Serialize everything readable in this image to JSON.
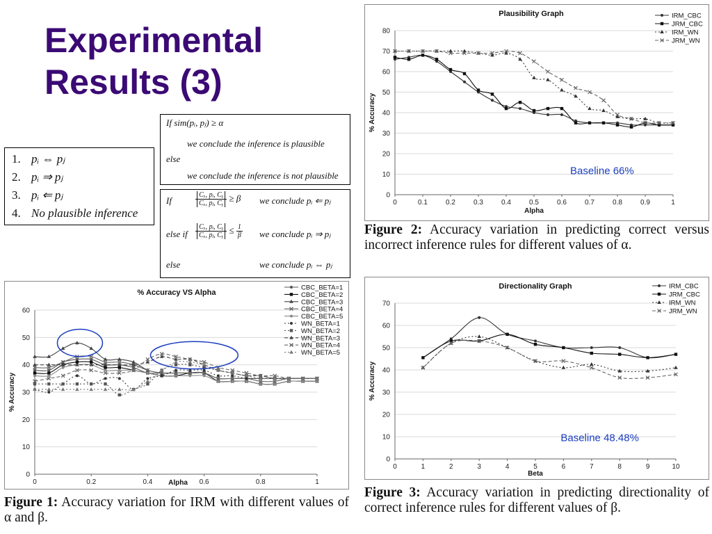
{
  "slide": {
    "title_line1": "Experimental",
    "title_line2": "Results (3)"
  },
  "rules_box": {
    "items": [
      {
        "num": "1.",
        "text": "pᵢ ⇔ pⱼ"
      },
      {
        "num": "2.",
        "text": "pᵢ ⇒ pⱼ"
      },
      {
        "num": "3.",
        "text": "pᵢ ⇐ pⱼ"
      },
      {
        "num": "4.",
        "text": "No plausible inference"
      }
    ]
  },
  "sim_box": {
    "line1": "If  sim(pᵢ, pⱼ) ≥ α",
    "line2": "we conclude the inference is plausible",
    "line3": "else",
    "line4": "we conclude the inference is not plausible"
  },
  "dir_box": {
    "if": "If",
    "frac1_num": "Cₓ, pᵢ, Cᵧ",
    "frac1_den": "Cₓ, pⱼ, Cᵧ",
    "cond1": "≥ β",
    "res1": "we conclude pᵢ ⇐ pⱼ",
    "elseif": "else if",
    "frac2_num": "Cₓ, pᵢ, Cᵧ",
    "frac2_den": "Cₓ, pⱼ, Cᵧ",
    "cond2_op": "≤",
    "cond2_num": "1",
    "cond2_den": "β",
    "res2": "we conclude pᵢ ⇒ pⱼ",
    "else": "else",
    "res3": "we conclude pᵢ ⇔ pⱼ"
  },
  "captions": {
    "fig1_label": "Figure 1:",
    "fig1_text": " Accuracy variation for IRM with different values of α and β.",
    "fig2_label": "Figure 2:",
    "fig2_text": " Accuracy variation in predicting correct versus incorrect inference rules for different values of α.",
    "fig3_label": "Figure 3:",
    "fig3_text": " Accuracy variation in predicting directionality of correct inference rules for different values of β."
  },
  "chart_data": [
    {
      "id": "fig2",
      "type": "line",
      "title": "Plausibility Graph",
      "xlabel": "Alpha",
      "ylabel": "% Accuracy",
      "xlim": [
        0,
        1
      ],
      "ylim": [
        0,
        80
      ],
      "xticks": [
        0,
        0.1,
        0.2,
        0.3,
        0.4,
        0.5,
        0.6,
        0.7,
        0.8,
        0.9,
        1
      ],
      "xtick_labels": [
        "0",
        "0.1",
        "0.2",
        "0.3",
        "0.4",
        "0.5",
        "0.6",
        "0.7",
        "0.8",
        "0.9",
        "1"
      ],
      "yticks": [
        0,
        10,
        20,
        30,
        40,
        50,
        60,
        70,
        80
      ],
      "grid": true,
      "legend_position": "top-right",
      "annotation": {
        "text": "Baseline 66%",
        "x": 0.63,
        "y": 10,
        "color": "#1a3dbf"
      },
      "series": [
        {
          "name": "IRM_CBC",
          "dash": "",
          "marker": "dot",
          "color": "#333333",
          "x": [
            0,
            0.05,
            0.1,
            0.15,
            0.2,
            0.25,
            0.3,
            0.35,
            0.4,
            0.45,
            0.5,
            0.55,
            0.6,
            0.65,
            0.7,
            0.75,
            0.8,
            0.85,
            0.9,
            0.95,
            1
          ],
          "y": [
            66,
            67,
            68,
            65,
            60,
            55,
            50,
            46,
            43,
            42,
            40,
            39,
            39,
            36,
            35,
            35,
            35,
            34,
            34,
            34,
            34
          ]
        },
        {
          "name": "JRM_CBC",
          "dash": "",
          "marker": "square",
          "color": "#111111",
          "x": [
            0,
            0.05,
            0.1,
            0.15,
            0.2,
            0.25,
            0.3,
            0.35,
            0.4,
            0.45,
            0.5,
            0.55,
            0.6,
            0.65,
            0.7,
            0.75,
            0.8,
            0.85,
            0.9,
            0.95,
            1
          ],
          "y": [
            67,
            66,
            68,
            66,
            61,
            59,
            51,
            49,
            42,
            45,
            41,
            42,
            42,
            35,
            35,
            35,
            34,
            33,
            35,
            34,
            34
          ]
        },
        {
          "name": "IRM_WN",
          "dash": "2 3",
          "marker": "tri",
          "color": "#333333",
          "x": [
            0,
            0.05,
            0.1,
            0.15,
            0.2,
            0.25,
            0.3,
            0.35,
            0.4,
            0.45,
            0.5,
            0.55,
            0.6,
            0.65,
            0.7,
            0.75,
            0.8,
            0.85,
            0.9,
            0.95,
            1
          ],
          "y": [
            70,
            70,
            70,
            70,
            70,
            70,
            69,
            68,
            69,
            66,
            57,
            56,
            51,
            48,
            42,
            41,
            38,
            37,
            37,
            35,
            35
          ]
        },
        {
          "name": "JRM_WN",
          "dash": "5 3",
          "marker": "x",
          "color": "#666666",
          "x": [
            0,
            0.05,
            0.1,
            0.15,
            0.2,
            0.25,
            0.3,
            0.35,
            0.4,
            0.45,
            0.5,
            0.55,
            0.6,
            0.65,
            0.7,
            0.75,
            0.8,
            0.85,
            0.9,
            0.95,
            1
          ],
          "y": [
            70,
            70,
            70,
            70,
            69,
            69,
            69,
            69,
            70,
            69,
            65,
            60,
            56,
            52,
            50,
            46,
            39,
            37,
            35,
            35,
            35
          ]
        }
      ]
    },
    {
      "id": "fig3",
      "type": "line",
      "title": "Directionality Graph",
      "xlabel": "Beta",
      "ylabel": "% Accuracy",
      "xlim": [
        0,
        10
      ],
      "ylim": [
        0,
        70
      ],
      "xticks": [
        0,
        1,
        2,
        3,
        4,
        5,
        6,
        7,
        8,
        9,
        10
      ],
      "xtick_labels": [
        "0",
        "1",
        "2",
        "3",
        "4",
        "5",
        "6",
        "7",
        "8",
        "9",
        "10"
      ],
      "yticks": [
        0,
        10,
        20,
        30,
        40,
        50,
        60,
        70
      ],
      "grid": true,
      "legend_position": "top-right",
      "annotation": {
        "text": "Baseline 48.48%",
        "x": 5.9,
        "y": 8,
        "color": "#1a3dbf"
      },
      "series": [
        {
          "name": "IRM_CBC",
          "dash": "",
          "marker": "dot",
          "color": "#333333",
          "x": [
            1,
            2,
            3,
            4,
            5,
            6,
            7,
            8,
            9,
            10
          ],
          "y": [
            45.5,
            54,
            63.5,
            56,
            53,
            50,
            50,
            50,
            45.5,
            47
          ]
        },
        {
          "name": "JRM_CBC",
          "dash": "",
          "marker": "square",
          "color": "#111111",
          "x": [
            1,
            2,
            3,
            4,
            5,
            6,
            7,
            8,
            9,
            10
          ],
          "y": [
            45.5,
            53,
            53,
            56,
            51.5,
            50,
            47.5,
            47,
            45.5,
            47
          ]
        },
        {
          "name": "IRM_WN",
          "dash": "2 3",
          "marker": "tri",
          "color": "#333333",
          "x": [
            1,
            2,
            3,
            4,
            5,
            6,
            7,
            8,
            9,
            10
          ],
          "y": [
            41,
            52,
            55,
            50,
            44,
            41,
            42.5,
            39.5,
            39.5,
            41
          ]
        },
        {
          "name": "JRM_WN",
          "dash": "5 3",
          "marker": "x",
          "color": "#666666",
          "x": [
            1,
            2,
            3,
            4,
            5,
            6,
            7,
            8,
            9,
            10
          ],
          "y": [
            41,
            52,
            53,
            50,
            44,
            44,
            41,
            36.5,
            36.5,
            38
          ]
        }
      ]
    },
    {
      "id": "fig1",
      "type": "line",
      "title": "% Accuracy VS Alpha",
      "xlabel": "Alpha",
      "ylabel": "% Accuracy",
      "xlim": [
        0,
        1
      ],
      "ylim": [
        0,
        60
      ],
      "xticks": [
        0,
        0.2,
        0.4,
        0.6,
        0.8,
        1
      ],
      "xtick_labels": [
        "0",
        "0.2",
        "0.4",
        "0.6",
        "0.8",
        "1"
      ],
      "yticks": [
        0,
        10,
        20,
        30,
        40,
        50,
        60
      ],
      "grid": true,
      "legend_position": "top-right",
      "highlight_ellipses": [
        {
          "cx": 0.16,
          "cy": 48,
          "rx": 0.08,
          "ry": 5,
          "color": "#1a3dbf"
        },
        {
          "cx": 0.565,
          "cy": 43.5,
          "rx": 0.155,
          "ry": 5,
          "color": "#1a3dbf"
        }
      ],
      "x": [
        0,
        0.05,
        0.1,
        0.15,
        0.2,
        0.25,
        0.3,
        0.35,
        0.4,
        0.45,
        0.5,
        0.55,
        0.6,
        0.65,
        0.7,
        0.75,
        0.8,
        0.85,
        0.9,
        0.95,
        1
      ],
      "series": [
        {
          "name": "CBC_BETA=1",
          "dash": "",
          "marker": "dot",
          "color": "#555555",
          "y": [
            38,
            38,
            41,
            42,
            42,
            40,
            40,
            39,
            37,
            37,
            37,
            37,
            37,
            35,
            35,
            35,
            35,
            35,
            35,
            35,
            35
          ]
        },
        {
          "name": "CBC_BETA=2",
          "dash": "",
          "marker": "square",
          "color": "#111111",
          "y": [
            37,
            37,
            40,
            41,
            41,
            39,
            39,
            38,
            37,
            36,
            36,
            37,
            37,
            34,
            34,
            34,
            33,
            33,
            34,
            34,
            34
          ]
        },
        {
          "name": "CBC_BETA=3",
          "dash": "",
          "marker": "tri",
          "color": "#444444",
          "y": [
            43,
            43,
            46,
            48,
            46,
            42,
            42,
            41,
            38,
            37,
            37,
            37,
            37,
            34,
            34,
            34,
            33,
            33,
            34,
            34,
            34
          ]
        },
        {
          "name": "CBC_BETA=4",
          "dash": "",
          "marker": "x",
          "color": "#666666",
          "y": [
            39,
            39,
            41,
            43,
            43,
            41,
            41,
            40,
            38,
            37,
            37,
            37,
            37,
            35,
            35,
            35,
            34,
            34,
            35,
            35,
            35
          ]
        },
        {
          "name": "CBC_BETA=5",
          "dash": "",
          "marker": "dot",
          "color": "#888888",
          "y": [
            36,
            36,
            39,
            40,
            40,
            38,
            38,
            38,
            37,
            36,
            36,
            36,
            36,
            34,
            34,
            34,
            33,
            33,
            34,
            34,
            34
          ]
        },
        {
          "name": "WN_BETA=1",
          "dash": "2 3",
          "marker": "dot",
          "color": "#333333",
          "y": [
            31,
            30,
            33,
            36,
            33,
            35,
            35,
            31,
            35,
            36,
            38,
            38,
            38,
            36,
            36,
            35,
            35,
            35,
            35,
            35,
            35
          ]
        },
        {
          "name": "WN_BETA=2",
          "dash": "2 3",
          "marker": "square",
          "color": "#555555",
          "y": [
            33,
            33,
            33,
            33,
            33,
            33,
            29,
            31,
            33,
            38,
            40,
            40,
            39,
            38,
            37,
            36,
            36,
            35,
            35,
            35,
            35
          ]
        },
        {
          "name": "WN_BETA=3",
          "dash": "5 3",
          "marker": "tri",
          "color": "#444444",
          "y": [
            40,
            40,
            40,
            40,
            40,
            40,
            40,
            40,
            41,
            43,
            42,
            42,
            40,
            38,
            37,
            36,
            36,
            35,
            35,
            35,
            35
          ]
        },
        {
          "name": "WN_BETA=4",
          "dash": "5 3",
          "marker": "x",
          "color": "#666666",
          "y": [
            34,
            35,
            36,
            38,
            38,
            37,
            37,
            38,
            42,
            44,
            43,
            42,
            41,
            39,
            38,
            37,
            36,
            36,
            35,
            35,
            35
          ]
        },
        {
          "name": "WN_BETA=5",
          "dash": "2 3",
          "marker": "tri",
          "color": "#777777",
          "y": [
            31,
            31,
            31,
            31,
            31,
            31,
            31,
            31,
            34,
            38,
            41,
            41,
            40,
            38,
            37,
            36,
            35,
            35,
            35,
            35,
            35
          ]
        }
      ]
    }
  ]
}
